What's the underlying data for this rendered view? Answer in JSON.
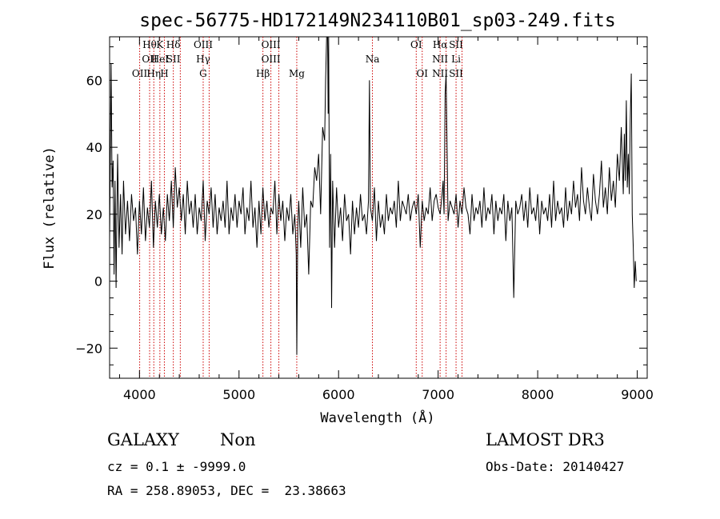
{
  "chart_data": {
    "type": "line",
    "title": "spec-56775-HD172149N234110B01_sp03-249.fits",
    "xlabel": "Wavelength (Å)",
    "ylabel": "Flux (relative)",
    "xlim": [
      3700,
      9100
    ],
    "ylim": [
      -29,
      73
    ],
    "xticks": [
      4000,
      5000,
      6000,
      7000,
      8000,
      9000
    ],
    "yticks": [
      -20,
      0,
      20,
      40,
      60
    ],
    "grid": false,
    "line_color": "#000000",
    "marker_color": "#cc0000",
    "series": [
      {
        "x": [
          3700,
          3715,
          3725,
          3735,
          3745,
          3755,
          3765,
          3780,
          3795,
          3810,
          3825,
          3840,
          3860,
          3880,
          3900,
          3920,
          3940,
          3960,
          3980,
          4000,
          4020,
          4040,
          4060,
          4080,
          4100,
          4120,
          4140,
          4160,
          4180,
          4200,
          4220,
          4240,
          4260,
          4280,
          4300,
          4320,
          4340,
          4360,
          4380,
          4400,
          4420,
          4440,
          4460,
          4480,
          4500,
          4520,
          4540,
          4560,
          4580,
          4600,
          4620,
          4640,
          4660,
          4680,
          4700,
          4720,
          4740,
          4760,
          4780,
          4800,
          4820,
          4840,
          4860,
          4880,
          4900,
          4920,
          4940,
          4960,
          4980,
          5000,
          5020,
          5040,
          5060,
          5080,
          5100,
          5120,
          5140,
          5160,
          5180,
          5200,
          5220,
          5240,
          5260,
          5280,
          5300,
          5320,
          5340,
          5360,
          5380,
          5400,
          5420,
          5440,
          5460,
          5480,
          5500,
          5520,
          5540,
          5560,
          5575,
          5580,
          5590,
          5600,
          5620,
          5640,
          5660,
          5680,
          5700,
          5720,
          5740,
          5760,
          5780,
          5800,
          5820,
          5840,
          5860,
          5870,
          5880,
          5890,
          5895,
          5900,
          5910,
          5920,
          5930,
          5940,
          5960,
          5980,
          6000,
          6020,
          6040,
          6060,
          6080,
          6100,
          6120,
          6140,
          6160,
          6180,
          6200,
          6220,
          6240,
          6260,
          6280,
          6300,
          6310,
          6320,
          6340,
          6360,
          6380,
          6400,
          6420,
          6440,
          6460,
          6480,
          6500,
          6520,
          6540,
          6560,
          6580,
          6600,
          6620,
          6640,
          6660,
          6680,
          6700,
          6720,
          6740,
          6760,
          6780,
          6800,
          6820,
          6840,
          6860,
          6880,
          6900,
          6920,
          6940,
          6960,
          6980,
          7000,
          7020,
          7040,
          7050,
          7055,
          7060,
          7070,
          7080,
          7100,
          7120,
          7140,
          7160,
          7180,
          7200,
          7220,
          7240,
          7260,
          7280,
          7300,
          7320,
          7340,
          7360,
          7380,
          7400,
          7420,
          7440,
          7460,
          7480,
          7500,
          7520,
          7540,
          7560,
          7580,
          7600,
          7620,
          7640,
          7660,
          7680,
          7700,
          7720,
          7740,
          7745,
          7760,
          7780,
          7800,
          7820,
          7840,
          7860,
          7880,
          7900,
          7920,
          7940,
          7960,
          7980,
          8000,
          8020,
          8040,
          8060,
          8080,
          8100,
          8120,
          8140,
          8160,
          8180,
          8200,
          8220,
          8240,
          8260,
          8280,
          8300,
          8320,
          8340,
          8360,
          8380,
          8400,
          8420,
          8440,
          8460,
          8480,
          8500,
          8520,
          8540,
          8560,
          8580,
          8600,
          8620,
          8640,
          8660,
          8680,
          8700,
          8720,
          8740,
          8760,
          8780,
          8800,
          8820,
          8840,
          8860,
          8870,
          8880,
          8890,
          8900,
          8910,
          8920,
          8930,
          8940,
          8950,
          8960,
          8970,
          8980,
          8990
        ],
        "y": [
          12,
          65,
          28,
          36,
          2,
          30,
          -2,
          38,
          10,
          26,
          8,
          30,
          14,
          24,
          12,
          26,
          18,
          22,
          8,
          24,
          14,
          28,
          12,
          22,
          16,
          30,
          10,
          24,
          16,
          26,
          14,
          22,
          12,
          26,
          18,
          30,
          16,
          34,
          22,
          28,
          18,
          26,
          14,
          30,
          20,
          24,
          16,
          26,
          14,
          22,
          18,
          30,
          12,
          24,
          20,
          28,
          16,
          26,
          14,
          22,
          18,
          24,
          16,
          30,
          14,
          22,
          18,
          26,
          16,
          24,
          20,
          28,
          14,
          22,
          18,
          30,
          16,
          22,
          10,
          24,
          14,
          28,
          18,
          24,
          16,
          22,
          20,
          30,
          14,
          26,
          18,
          24,
          12,
          22,
          18,
          26,
          14,
          20,
          8,
          -22,
          16,
          24,
          10,
          28,
          16,
          20,
          2,
          24,
          22,
          34,
          30,
          38,
          20,
          46,
          42,
          60,
          73,
          73,
          50,
          73,
          10,
          38,
          -8,
          30,
          10,
          28,
          16,
          22,
          12,
          26,
          18,
          20,
          8,
          24,
          14,
          22,
          16,
          26,
          18,
          20,
          14,
          24,
          60,
          22,
          18,
          28,
          12,
          24,
          16,
          20,
          14,
          26,
          18,
          22,
          20,
          24,
          16,
          30,
          18,
          24,
          22,
          20,
          26,
          18,
          22,
          24,
          20,
          26,
          10,
          24,
          18,
          22,
          20,
          28,
          18,
          24,
          26,
          22,
          20,
          26,
          30,
          24,
          20,
          56,
          62,
          18,
          24,
          22,
          20,
          26,
          16,
          24,
          20,
          28,
          22,
          20,
          14,
          26,
          18,
          22,
          20,
          24,
          16,
          28,
          18,
          22,
          20,
          26,
          14,
          24,
          18,
          22,
          20,
          26,
          12,
          24,
          18,
          22,
          16,
          -5,
          24,
          20,
          22,
          26,
          18,
          24,
          16,
          28,
          20,
          22,
          18,
          26,
          14,
          24,
          20,
          22,
          18,
          26,
          16,
          30,
          18,
          24,
          20,
          22,
          16,
          28,
          18,
          24,
          20,
          30,
          22,
          26,
          18,
          34,
          24,
          20,
          28,
          22,
          18,
          32,
          24,
          20,
          26,
          36,
          22,
          28,
          20,
          34,
          24,
          30,
          22,
          38,
          30,
          46,
          26,
          44,
          30,
          54,
          28,
          38,
          26,
          48,
          62,
          20,
          10,
          -2,
          6,
          0
        ]
      }
    ],
    "markers": [
      {
        "x": 4002,
        "label": "OII",
        "row": 2
      },
      {
        "x": 4102,
        "label": "Hθ",
        "row": 0
      },
      {
        "x": 4102,
        "label": "OII",
        "row": 1
      },
      {
        "x": 4144,
        "label": "Hη",
        "row": 2
      },
      {
        "x": 4205,
        "label": "K",
        "row": 0
      },
      {
        "x": 4205,
        "label": "HeI",
        "row": 1
      },
      {
        "x": 4250,
        "label": "H",
        "row": 2
      },
      {
        "x": 4340,
        "label": "Hδ",
        "row": 0
      },
      {
        "x": 4340,
        "label": "SII",
        "row": 1
      },
      {
        "x": 4410,
        "label": "",
        "row": 1
      },
      {
        "x": 4640,
        "label": "OIII",
        "row": 0
      },
      {
        "x": 4640,
        "label": "Hγ",
        "row": 1
      },
      {
        "x": 4640,
        "label": "G",
        "row": 2
      },
      {
        "x": 4700,
        "label": "",
        "row": 2
      },
      {
        "x": 5240,
        "label": "Hβ",
        "row": 2
      },
      {
        "x": 5320,
        "label": "OIII",
        "row": 0
      },
      {
        "x": 5320,
        "label": "OIII",
        "row": 1
      },
      {
        "x": 5400,
        "label": "",
        "row": 1
      },
      {
        "x": 5580,
        "label": "Mg",
        "row": 2
      },
      {
        "x": 6340,
        "label": "Na",
        "row": 1
      },
      {
        "x": 6780,
        "label": "OI",
        "row": 0
      },
      {
        "x": 6840,
        "label": "OI",
        "row": 2
      },
      {
        "x": 7020,
        "label": "Hα",
        "row": 0
      },
      {
        "x": 7020,
        "label": "NII",
        "row": 1
      },
      {
        "x": 7020,
        "label": "NII",
        "row": 2
      },
      {
        "x": 7080,
        "label": "",
        "row": 0
      },
      {
        "x": 7180,
        "label": "SII",
        "row": 0
      },
      {
        "x": 7180,
        "label": "Li",
        "row": 1
      },
      {
        "x": 7180,
        "label": "SII",
        "row": 2
      },
      {
        "x": 7240,
        "label": "",
        "row": 2
      }
    ]
  },
  "info": {
    "class_label": "GALAXY",
    "subclass_label": "Non",
    "redshift": "cz = 0.1 ± -9999.0",
    "coords": "RA = 258.89053, DEC =  23.38663",
    "survey": "LAMOST DR3",
    "obs_date": "Obs-Date: 20140427"
  }
}
